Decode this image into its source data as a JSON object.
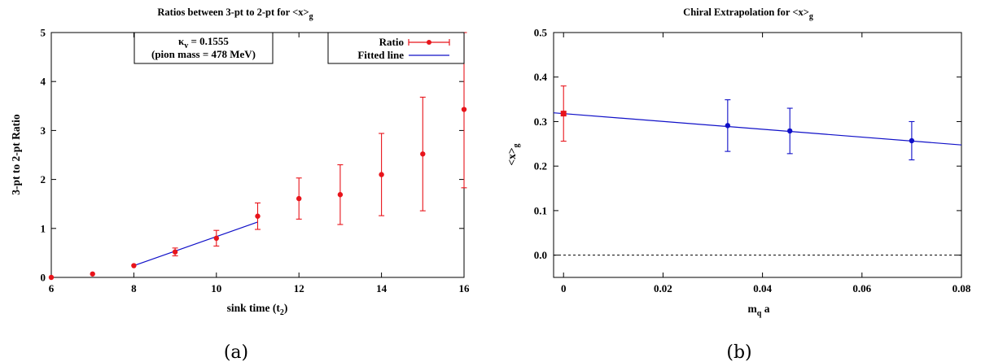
{
  "chart_data": [
    {
      "type": "scatter",
      "title": "Ratios between 3-pt to 2-pt for <x>",
      "title_sub": "g",
      "xlabel": "sink time (t",
      "xlabel_sub": "2",
      "xlabel_end": ")",
      "ylabel": "3-pt to 2-pt Ratio",
      "xlim": [
        6,
        16
      ],
      "ylim": [
        0,
        5
      ],
      "xticks": [
        "6",
        "8",
        "10",
        "12",
        "14",
        "16"
      ],
      "yticks": [
        "0",
        "1",
        "2",
        "3",
        "4",
        "5"
      ],
      "grid": false,
      "legend_position": "top-right",
      "annotation": {
        "line1": "κ",
        "line1_sub": "v",
        "line1_end": " = 0.1555",
        "line2": "(pion mass = 478 MeV)"
      },
      "series": [
        {
          "name": "Ratio",
          "color": "#e8141b",
          "points": [
            {
              "x": 6,
              "y": 0.0,
              "err": 0
            },
            {
              "x": 7,
              "y": 0.07,
              "err": 0
            },
            {
              "x": 8,
              "y": 0.24,
              "err": 0
            },
            {
              "x": 9,
              "y": 0.52,
              "err": 0.08
            },
            {
              "x": 10,
              "y": 0.8,
              "err": 0.16
            },
            {
              "x": 11,
              "y": 1.25,
              "err": 0.27
            },
            {
              "x": 12,
              "y": 1.61,
              "err": 0.42
            },
            {
              "x": 13,
              "y": 1.69,
              "err": 0.61
            },
            {
              "x": 14,
              "y": 2.1,
              "err": 0.84
            },
            {
              "x": 15,
              "y": 2.52,
              "err": 1.16
            },
            {
              "x": 16,
              "y": 3.43,
              "err": 1.6
            }
          ]
        },
        {
          "name": "Fitted line",
          "color": "#1010c8",
          "line": [
            [
              8,
              0.24
            ],
            [
              11,
              1.13
            ]
          ]
        }
      ]
    },
    {
      "type": "scatter",
      "title": "Chiral Extrapolation for <x>",
      "title_sub": "g",
      "xlabel": "m",
      "xlabel_sub": "q",
      "xlabel_end": " a",
      "ylabel": "<x>",
      "ylabel_sub": "g",
      "xlim": [
        -0.002,
        0.08
      ],
      "ylim": [
        -0.05,
        0.5
      ],
      "xticks": [
        "0",
        "0.02",
        "0.04",
        "0.06",
        "0.08"
      ],
      "yticks": [
        "0.0",
        "0.1",
        "0.2",
        "0.3",
        "0.4",
        "0.5"
      ],
      "grid": false,
      "series": [
        {
          "color": "#1010c8",
          "points": [
            {
              "x": 0.033,
              "y": 0.291,
              "err": 0.058
            },
            {
              "x": 0.0455,
              "y": 0.279,
              "err": 0.051
            },
            {
              "x": 0.07,
              "y": 0.257,
              "err": 0.043
            }
          ]
        },
        {
          "color": "#e8141b",
          "points": [
            {
              "x": 0.0,
              "y": 0.318,
              "err": 0.062
            }
          ]
        },
        {
          "color": "#1010c8",
          "line": [
            [
              -0.002,
              0.3197
            ],
            [
              0.08,
              0.2475
            ]
          ]
        }
      ],
      "reference_line": {
        "y": 0.0,
        "style": "dashed"
      }
    }
  ],
  "captions": [
    "(a)",
    "(b)"
  ]
}
